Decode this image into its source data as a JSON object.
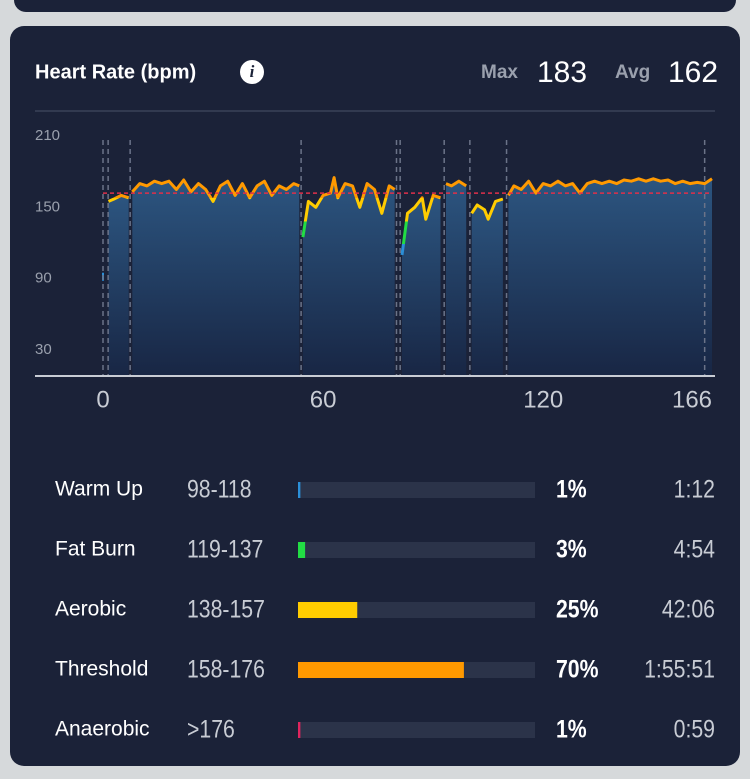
{
  "header": {
    "title": "Heart Rate (bpm)",
    "max_label": "Max",
    "max": 183,
    "avg_label": "Avg",
    "avg": 162
  },
  "chart_data": {
    "type": "line",
    "x": [
      0,
      0.8,
      1.5,
      3,
      5,
      7,
      7.4,
      8,
      10,
      12,
      14,
      16,
      18,
      20,
      22,
      24,
      26,
      28,
      30,
      32,
      34,
      36,
      38,
      40,
      42,
      44,
      46,
      48,
      50,
      52,
      53.5,
      54,
      54.5,
      56,
      58,
      60,
      62,
      63,
      64,
      66,
      68,
      70,
      72,
      74,
      76,
      78,
      79.5,
      80.5,
      81.5,
      83,
      85,
      87,
      88,
      90,
      92,
      93,
      93.5,
      95,
      97,
      99,
      100,
      100.5,
      102,
      104,
      105,
      107,
      109,
      110,
      110.5,
      112,
      114,
      116,
      118,
      120,
      122,
      124,
      126,
      128,
      130,
      132,
      134,
      136,
      138,
      140,
      142,
      144,
      146,
      148,
      150,
      152,
      154,
      156,
      158,
      160,
      162,
      164,
      166
    ],
    "series": [
      {
        "name": "Heart Rate",
        "values": [
          95,
          null,
          155,
          157,
          160,
          158,
          null,
          163,
          170,
          168,
          172,
          170,
          172,
          165,
          173,
          163,
          170,
          165,
          155,
          168,
          172,
          160,
          170,
          158,
          168,
          172,
          160,
          168,
          165,
          170,
          168,
          null,
          125,
          155,
          150,
          160,
          162,
          175,
          158,
          170,
          168,
          150,
          170,
          165,
          145,
          168,
          165,
          null,
          110,
          145,
          150,
          158,
          140,
          160,
          158,
          null,
          170,
          168,
          172,
          168,
          null,
          145,
          152,
          148,
          140,
          155,
          157,
          null,
          160,
          168,
          165,
          172,
          162,
          170,
          168,
          172,
          168,
          170,
          162,
          170,
          172,
          170,
          172,
          170,
          173,
          172,
          174,
          172,
          174,
          172,
          173,
          170,
          172,
          170,
          171,
          170,
          174
        ]
      }
    ],
    "pauses": [
      0,
      1.4,
      7.4,
      54,
      80,
      81,
      93,
      100,
      110,
      164
    ],
    "xlim": [
      0,
      166
    ],
    "xticks": [
      0,
      60,
      120,
      166
    ],
    "ylim": [
      8,
      225
    ],
    "yticks": [
      30,
      90,
      150,
      210
    ]
  },
  "zones": [
    {
      "name": "Warm Up",
      "range": "98-118",
      "percent": 1,
      "percent_label": "1%",
      "time": "1:12",
      "color": "#2b8fd8"
    },
    {
      "name": "Fat Burn",
      "range": "119-137",
      "percent": 3,
      "percent_label": "3%",
      "time": "4:54",
      "color": "#22dd44"
    },
    {
      "name": "Aerobic",
      "range": "138-157",
      "percent": 25,
      "percent_label": "25%",
      "time": "42:06",
      "color": "#ffcc00"
    },
    {
      "name": "Threshold",
      "range": "158-176",
      "percent": 70,
      "percent_label": "70%",
      "time": "1:55:51",
      "color": "#ff9900"
    },
    {
      "name": "Anaerobic",
      "range": ">176",
      "percent": 1,
      "percent_label": "1%",
      "time": "0:59",
      "color": "#e0245e"
    }
  ]
}
